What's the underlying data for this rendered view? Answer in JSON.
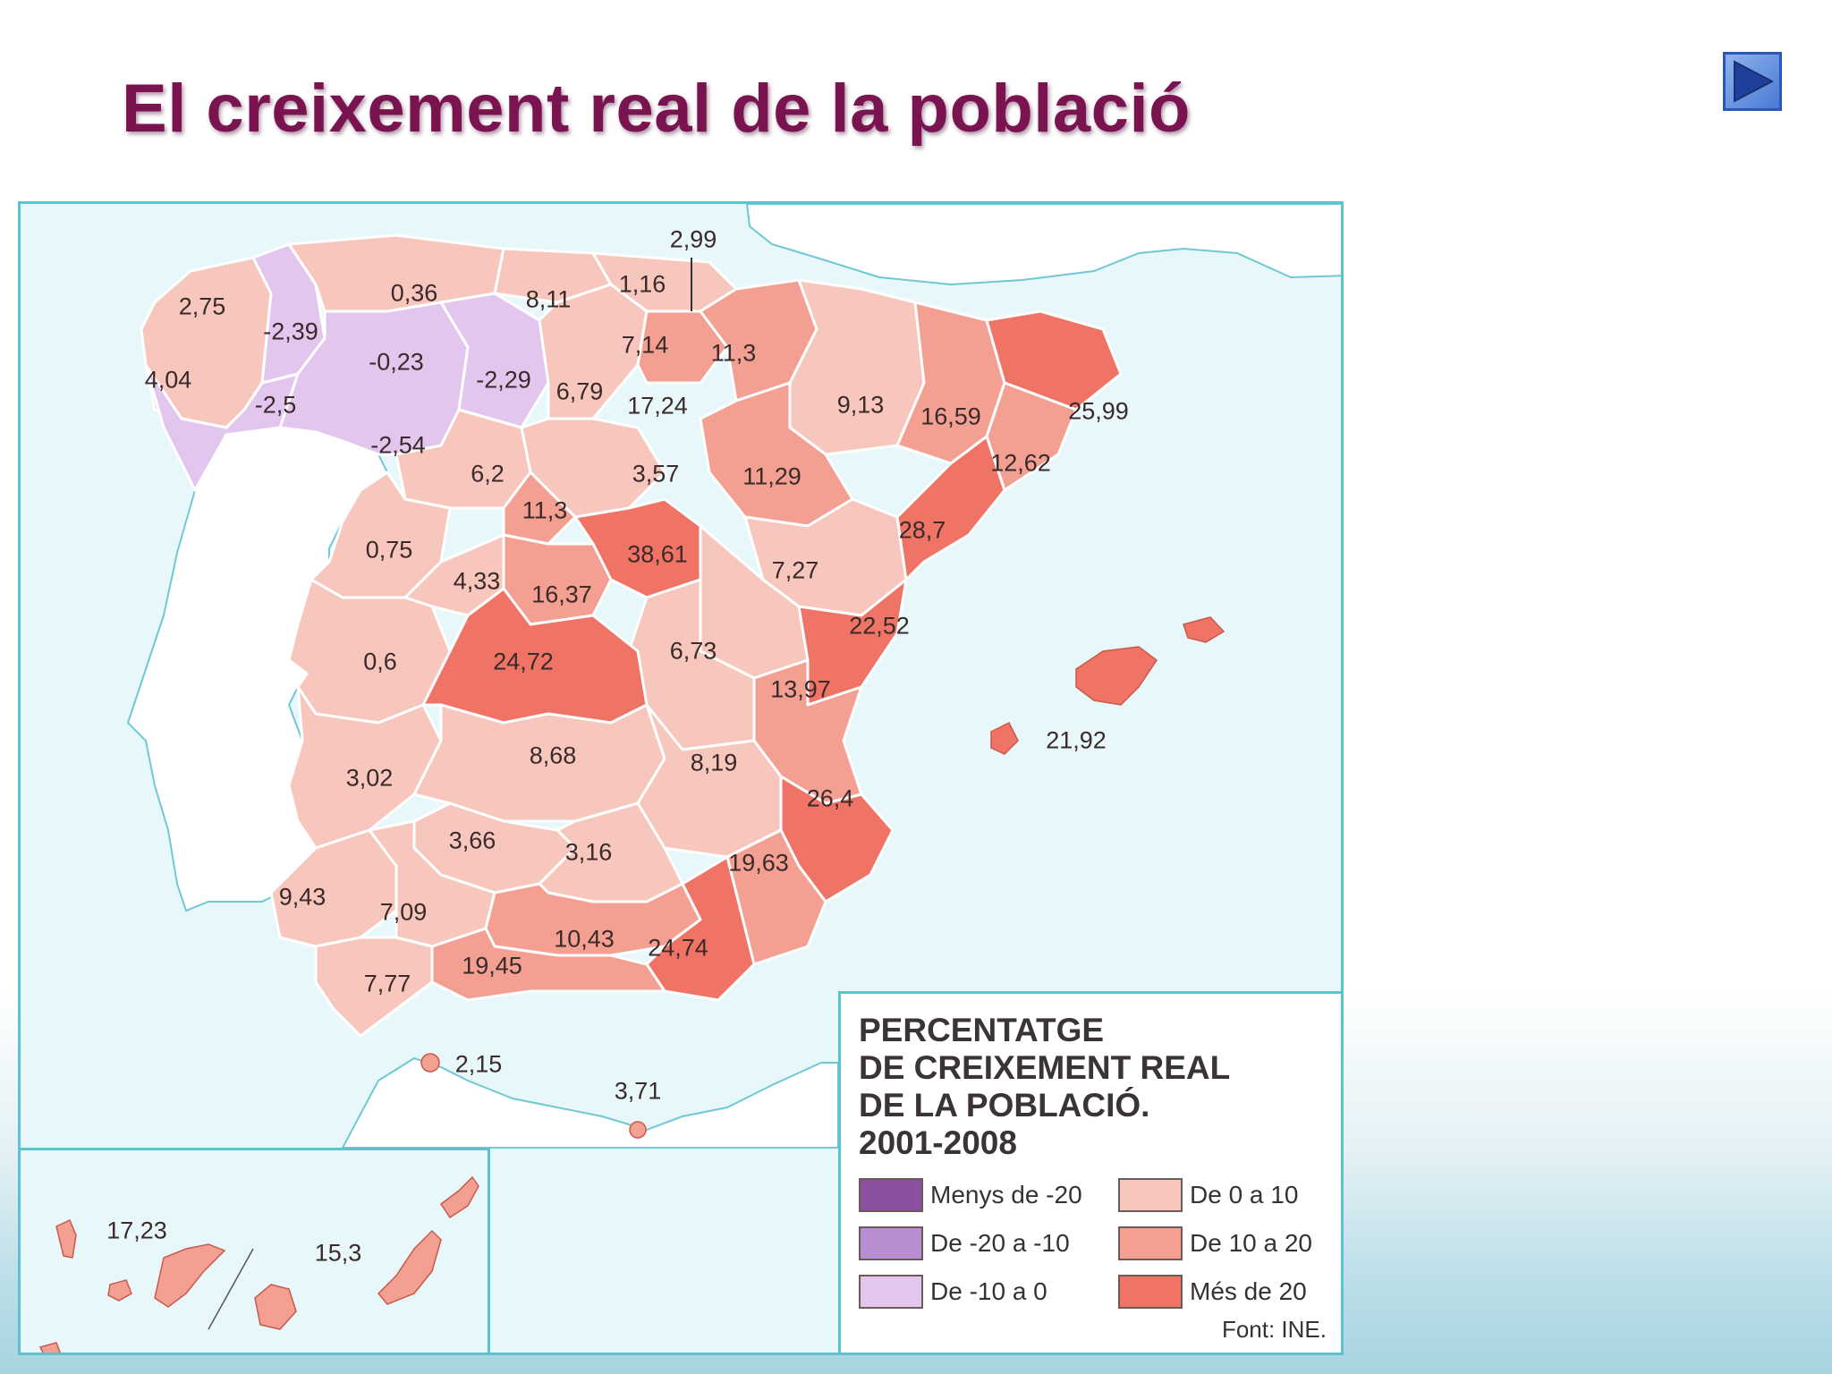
{
  "title": "El creixement real de la població",
  "nav": {
    "next_icon": "play-triangle-icon"
  },
  "legend": {
    "title_lines": [
      "PERCENTATGE",
      "DE CREIXEMENT REAL",
      "DE LA POBLACIÓ.",
      "2001-2008"
    ],
    "classes": [
      {
        "label": "Menys de -20",
        "color": "#8a4f9e"
      },
      {
        "label": "De 0 a 10",
        "color": "#f7c6bc"
      },
      {
        "label": "De -20 a -10",
        "color": "#b78fd0"
      },
      {
        "label": "De 10 a 20",
        "color": "#f3a092"
      },
      {
        "label": "De -10 a 0",
        "color": "#e3c6ee"
      },
      {
        "label": "Més de 20",
        "color": "#ef7466"
      }
    ],
    "source": "Font: INE."
  },
  "regions": [
    {
      "name": "A Coruña",
      "value": "2,75"
    },
    {
      "name": "Lugo",
      "value": "-2,39"
    },
    {
      "name": "Asturias",
      "value": "0,36"
    },
    {
      "name": "Cantabria",
      "value": "8,11"
    },
    {
      "name": "Bizkaia",
      "value": "1,16"
    },
    {
      "name": "Gipuzkoa",
      "value": "2,99"
    },
    {
      "name": "Araba",
      "value": "7,14"
    },
    {
      "name": "Navarra",
      "value": "11,3"
    },
    {
      "name": "Pontevedra",
      "value": "4,04"
    },
    {
      "name": "Ourense",
      "value": "-2,5"
    },
    {
      "name": "León",
      "value": "-0,23"
    },
    {
      "name": "Palencia",
      "value": "-2,29"
    },
    {
      "name": "Burgos",
      "value": "6,79"
    },
    {
      "name": "La Rioja",
      "value": "17,24"
    },
    {
      "name": "Huesca",
      "value": "9,13"
    },
    {
      "name": "Lleida",
      "value": "16,59"
    },
    {
      "name": "Girona",
      "value": "25,99"
    },
    {
      "name": "Zamora",
      "value": "-2,54"
    },
    {
      "name": "Valladolid",
      "value": "6,2"
    },
    {
      "name": "Soria",
      "value": "3,57"
    },
    {
      "name": "Zaragoza",
      "value": "11,29"
    },
    {
      "name": "Barcelona",
      "value": "12,62"
    },
    {
      "name": "Segovia",
      "value": "11,3"
    },
    {
      "name": "Tarragona",
      "value": "28,7"
    },
    {
      "name": "Salamanca",
      "value": "0,75"
    },
    {
      "name": "Madrid",
      "value": "38,61"
    },
    {
      "name": "Teruel",
      "value": "7,27"
    },
    {
      "name": "Ávila",
      "value": "4,33"
    },
    {
      "name": "Guadalajara-oest",
      "value": "16,37"
    },
    {
      "name": "Castelló",
      "value": "22,52"
    },
    {
      "name": "Cáceres",
      "value": "0,6"
    },
    {
      "name": "Toledo",
      "value": "24,72"
    },
    {
      "name": "Cuenca",
      "value": "6,73"
    },
    {
      "name": "València",
      "value": "13,97"
    },
    {
      "name": "Illes Balears",
      "value": "21,92"
    },
    {
      "name": "Ciudad Real",
      "value": "8,68"
    },
    {
      "name": "Albacete",
      "value": "8,19"
    },
    {
      "name": "Badajoz",
      "value": "3,02"
    },
    {
      "name": "Alacant",
      "value": "26,4"
    },
    {
      "name": "Córdoba",
      "value": "3,66"
    },
    {
      "name": "Jaén",
      "value": "3,16"
    },
    {
      "name": "Múrcia",
      "value": "19,63"
    },
    {
      "name": "Huelva",
      "value": "9,43"
    },
    {
      "name": "Sevilla",
      "value": "7,09"
    },
    {
      "name": "Granada",
      "value": "10,43"
    },
    {
      "name": "Almeria",
      "value": "24,74"
    },
    {
      "name": "Màlaga",
      "value": "19,45"
    },
    {
      "name": "Cadis",
      "value": "7,77"
    },
    {
      "name": "Ceuta",
      "value": "2,15"
    },
    {
      "name": "Melilla",
      "value": "3,71"
    },
    {
      "name": "Santa Cruz de Tenerife",
      "value": "17,23"
    },
    {
      "name": "Las Palmas",
      "value": "15,3"
    }
  ]
}
